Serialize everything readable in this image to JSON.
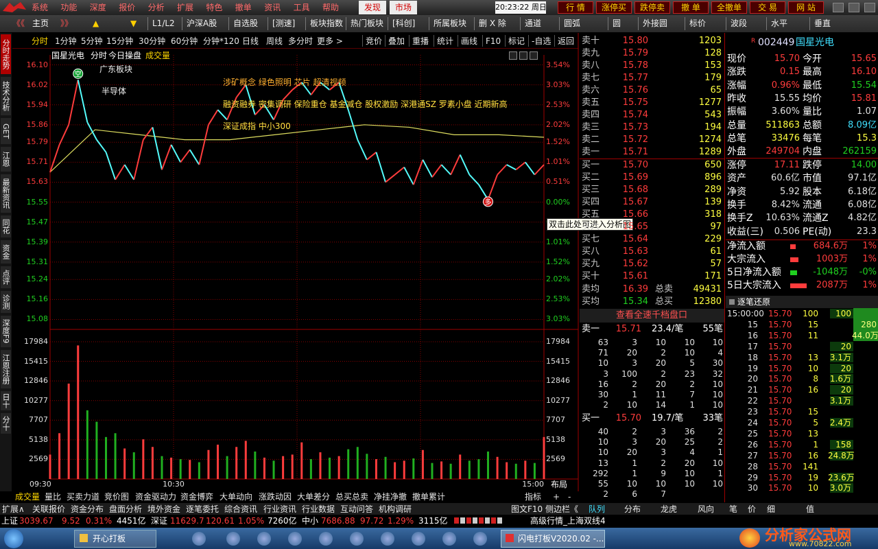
{
  "menu": {
    "items": [
      "系统",
      "功能",
      "深度",
      "报价",
      "分析",
      "扩展",
      "特色",
      "撤单",
      "资讯",
      "工具",
      "帮助"
    ],
    "tabs": [
      "发现",
      "市场"
    ],
    "clock": "20:23:22 周日",
    "buttons": [
      "行 情",
      "涨停买",
      "跌停卖",
      "撤 单",
      "全撤单",
      "交 易",
      "网 站"
    ]
  },
  "toolbar": {
    "nav": [
      "《《",
      "主页",
      "》》",
      "▲",
      "▼"
    ],
    "items": [
      "L1/L2",
      "沪深A股",
      "自选股",
      "[测速]",
      "板块指数",
      "热门板块",
      "[科创]",
      "所属板块",
      "删 X 除",
      "通道",
      "圆弧",
      "圆",
      "外接圆",
      "标价",
      "波段",
      "水平",
      "垂直"
    ]
  },
  "side_tabs": [
    "分时走势",
    "技术分析",
    "GET",
    "江恩",
    "最新资讯",
    "同花",
    "资金",
    "点评",
    "诊测",
    "深度F9",
    "江恩注册",
    "日十",
    "分十"
  ],
  "chart_tabs": {
    "left": [
      "分时",
      "1分钟",
      "5分钟",
      "15分钟",
      "30分钟",
      "60分钟",
      "分钟*120",
      "日线",
      "周线",
      "多分时",
      "更多 >"
    ],
    "right": [
      "竞价",
      "叠加",
      "重播",
      "统计",
      "画线",
      "F10",
      "标记",
      "-自选",
      "返回"
    ]
  },
  "stock_title": [
    "国星光电",
    "分时",
    "今日操盘",
    "成交量"
  ],
  "chart": {
    "type": "line",
    "price": [
      15.67,
      15.78,
      15.86,
      16.04,
      15.87,
      15.8,
      15.75,
      15.64,
      15.7,
      15.64,
      15.8,
      15.85,
      15.68,
      15.78,
      15.71,
      15.76,
      15.7,
      15.86,
      15.92,
      15.88,
      15.97,
      16.02,
      15.9,
      15.94,
      15.88,
      15.96,
      16.0,
      16.03,
      15.98,
      16.03,
      16.0,
      16.03,
      15.92,
      15.8,
      15.72,
      15.75,
      15.63,
      15.66,
      15.69,
      15.62,
      15.72,
      15.65,
      15.7,
      15.66,
      15.74,
      15.66,
      15.62,
      15.56,
      15.66,
      15.7,
      15.68,
      15.71,
      15.66,
      15.7
    ],
    "avg": [
      15.67,
      15.84,
      15.82,
      15.8,
      15.8,
      15.82,
      15.84,
      15.86,
      15.85,
      15.82,
      15.82,
      15.81
    ],
    "volume": [
      3200,
      6000,
      12500,
      17500,
      9000,
      7500,
      5500,
      6000,
      4000,
      3500,
      5200,
      4200,
      3000,
      2800,
      2600,
      2500,
      2200,
      3800,
      4500,
      3000,
      4200,
      5000,
      3600,
      2800,
      2400,
      3000,
      3200,
      4800,
      2600,
      3500,
      2800,
      3000,
      3900,
      4200,
      3300,
      2600,
      2900,
      2200,
      2400,
      2700,
      3800,
      2100,
      2300,
      2000,
      3200,
      2400,
      2600,
      3600,
      2900,
      2200,
      2000,
      2400,
      2100,
      5500
    ],
    "ylim": [
      15.04,
      16.14
    ],
    "yticks": [
      {
        "value": 16.1,
        "label": "16.10"
      },
      16.02,
      15.94,
      15.86,
      15.79,
      15.71,
      15.63,
      15.55,
      15.47,
      15.39,
      15.31,
      15.24,
      15.16,
      15.08
    ],
    "pct_labels": [
      "3.54%",
      "3.03%",
      "2.53%",
      "2.02%",
      "1.52%",
      "1.01%",
      "0.51%",
      "0.00%",
      "0.51%",
      "1.01%",
      "1.52%",
      "2.02%",
      "2.53%",
      "3.03%"
    ],
    "vlim": [
      0,
      19600
    ],
    "vticks": [
      17984,
      15415,
      12846,
      10277,
      7707,
      5138,
      2569
    ],
    "time_labels": [
      "09:30",
      "10:30",
      "15:00"
    ],
    "layout_label": "布局",
    "annotations": [
      "广东板块",
      "半导体",
      "涉矿概念 绿色照明 芯片 超清视频",
      "融资融券 密集调研 保险重仓 基金减仓 股权激励 深港通SZ 罗素小盘 近期新高",
      "深证成指 中小300"
    ],
    "markers": [
      "空",
      "多"
    ],
    "tooltip": "双击此处可进入分析图",
    "colors": {
      "up": "#ff3c3c",
      "down": "#54fcfc",
      "avg": "#e0e060",
      "vol_up": "#ff3c3c",
      "vol_down": "#20b020"
    }
  },
  "order_book": {
    "asks": [
      [
        "卖十",
        "15.80",
        "1203"
      ],
      [
        "卖九",
        "15.79",
        "128"
      ],
      [
        "卖八",
        "15.78",
        "153"
      ],
      [
        "卖七",
        "15.77",
        "179"
      ],
      [
        "卖六",
        "15.76",
        "65"
      ],
      [
        "卖五",
        "15.75",
        "1277"
      ],
      [
        "卖四",
        "15.74",
        "543"
      ],
      [
        "卖三",
        "15.73",
        "194"
      ],
      [
        "卖二",
        "15.72",
        "1274"
      ],
      [
        "卖一",
        "15.71",
        "1289"
      ]
    ],
    "bids": [
      [
        "买一",
        "15.70",
        "650"
      ],
      [
        "买二",
        "15.69",
        "896"
      ],
      [
        "买三",
        "15.68",
        "289"
      ],
      [
        "买四",
        "15.67",
        "139"
      ],
      [
        "买五",
        "15.66",
        "318"
      ],
      [
        "买六",
        "15.65",
        "97"
      ],
      [
        "买七",
        "15.64",
        "229"
      ],
      [
        "买八",
        "15.63",
        "61"
      ],
      [
        "买九",
        "15.62",
        "57"
      ],
      [
        "买十",
        "15.61",
        "171"
      ]
    ],
    "summary": [
      [
        "卖均",
        "16.39",
        "总卖",
        "49431"
      ],
      [
        "买均",
        "15.34",
        "总买",
        "12380"
      ]
    ]
  },
  "depth": {
    "title": "查看全速千档盘口",
    "ask_head": [
      "卖一",
      "15.71",
      "23.4/笔",
      "55笔"
    ],
    "ask_rows": [
      [
        "63",
        "3",
        "10",
        "10",
        "10"
      ],
      [
        "71",
        "20",
        "2",
        "10",
        "4"
      ],
      [
        "10",
        "3",
        "20",
        "5",
        "30"
      ],
      [
        "3",
        "100",
        "2",
        "23",
        "32"
      ],
      [
        "16",
        "2",
        "20",
        "2",
        "10"
      ],
      [
        "30",
        "1",
        "11",
        "7",
        "10"
      ],
      [
        "2",
        "10",
        "14",
        "1",
        "10"
      ]
    ],
    "bid_head": [
      "买一",
      "15.70",
      "19.7/笔",
      "33笔"
    ],
    "bid_rows": [
      [
        "40",
        "2",
        "3",
        "36",
        "2"
      ],
      [
        "10",
        "3",
        "20",
        "25",
        "2"
      ],
      [
        "10",
        "20",
        "3",
        "4",
        "1"
      ],
      [
        "13",
        "1",
        "2",
        "20",
        "10"
      ],
      [
        "292",
        "1",
        "9",
        "10",
        "1"
      ],
      [
        "55",
        "10",
        "10",
        "10",
        "10"
      ],
      [
        "2",
        "6",
        "7"
      ]
    ]
  },
  "quote": {
    "flag": "R",
    "code": "002449",
    "name": "国星光电",
    "rows": [
      [
        "现价",
        "15.70",
        "今开",
        "15.65"
      ],
      [
        "涨跌",
        "0.15",
        "最高",
        "16.10"
      ],
      [
        "涨幅",
        "0.96%",
        "最低",
        "15.54"
      ],
      [
        "昨收",
        "15.55",
        "均价",
        "15.81"
      ],
      [
        "振幅",
        "3.60%",
        "量比",
        "1.07"
      ],
      [
        "总量",
        "511863",
        "总额",
        "8.09亿"
      ],
      [
        "总笔",
        "33476",
        "每笔",
        "15.3"
      ],
      [
        "外盘",
        "249704",
        "内盘",
        "262159"
      ],
      [
        "涨停",
        "17.11",
        "跌停",
        "14.00"
      ],
      [
        "资产",
        "60.6亿",
        "市值",
        "97.1亿"
      ],
      [
        "净资",
        "5.92",
        "股本",
        "6.18亿"
      ],
      [
        "换手",
        "8.42%",
        "流通",
        "6.08亿"
      ],
      [
        "换手Z",
        "10.63%",
        "流通Z",
        "4.82亿"
      ],
      [
        "收益(三)",
        "0.506",
        "PE(动)",
        "23.3"
      ]
    ],
    "flows": [
      [
        "净流入额",
        "684.6万",
        "1%"
      ],
      [
        "大宗流入",
        "1003万",
        "1%"
      ],
      [
        "5日净流入额",
        "-1048万",
        "-0%"
      ],
      [
        "5日大宗流入",
        "2087万",
        "1%"
      ]
    ]
  },
  "ticks": {
    "title": "逐笔还原",
    "rows": [
      {
        "n": "15:00:00",
        "p": "15.70",
        "a": "100",
        "b": "100"
      },
      {
        "n": "15",
        "p": "15.70",
        "a": "15",
        "g": "280"
      },
      {
        "n": "16",
        "p": "15.70",
        "a": "11",
        "g": "44.0万"
      },
      {
        "n": "17",
        "p": "15.70",
        "b": "20"
      },
      {
        "n": "18",
        "p": "15.70",
        "a": "13",
        "b": "3.1万"
      },
      {
        "n": "19",
        "p": "15.70",
        "a": "10",
        "b": "20"
      },
      {
        "n": "20",
        "p": "15.70",
        "a": "8",
        "b": "1.6万"
      },
      {
        "n": "21",
        "p": "15.70",
        "a": "16",
        "b": "20"
      },
      {
        "n": "22",
        "p": "15.70",
        "b": "3.1万"
      },
      {
        "n": "23",
        "p": "15.70",
        "a": "15"
      },
      {
        "n": "24",
        "p": "15.70",
        "a": "5",
        "b": "2.4万"
      },
      {
        "n": "25",
        "p": "15.70",
        "a": "13"
      },
      {
        "n": "26",
        "p": "15.70",
        "a": "1",
        "b": "158"
      },
      {
        "n": "27",
        "p": "15.70",
        "a": "16",
        "b": "24.8万"
      },
      {
        "n": "28",
        "p": "15.70",
        "a": "141"
      },
      {
        "n": "29",
        "p": "15.70",
        "a": "19",
        "b": "23.6万"
      },
      {
        "n": "30",
        "p": "15.70",
        "a": "10",
        "b": "3.0万"
      }
    ]
  },
  "bottom_tabs": {
    "left": [
      "成交量",
      "量比",
      "买卖力道",
      "竞价图",
      "资金驱动力",
      "资金博弈",
      "大单动向",
      "涨跌动因",
      "大单差分",
      "总买总卖",
      "净挂净撤",
      "撤单累计"
    ],
    "right": [
      "指标",
      "+",
      "-"
    ]
  },
  "sub_tabs": {
    "left": [
      "扩展∧",
      "关联报价",
      "资金分布",
      "盘面分析",
      "境外资金",
      "逐笔委托",
      "综合资讯",
      "行业资讯",
      "行业数据",
      "互动问答",
      "机构调研"
    ],
    "mid": [
      "图文F10",
      "侧边栏《"
    ],
    "right": [
      "队列",
      "分布",
      "龙虎",
      "风向",
      "笔",
      "价",
      "细",
      "值"
    ]
  },
  "status": [
    "上证",
    "3039.67",
    "9.52",
    "0.31%",
    "4451亿",
    "深证",
    "11629.7",
    "120.61",
    "1.05%",
    "7260亿",
    "中小",
    "7686.88",
    "97.72",
    "1.29%",
    "3115亿",
    "高级行情_上海双线4"
  ],
  "taskbar": {
    "tasks": [
      "开心打板",
      "闪电打板V2020.02 -..."
    ],
    "logo": "分析家公式网",
    "url": "www.70822.com"
  }
}
